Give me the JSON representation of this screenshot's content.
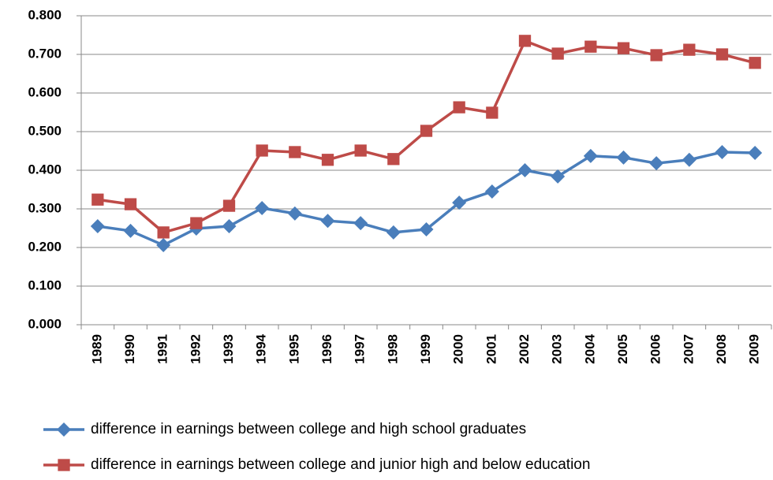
{
  "chart_data": {
    "type": "line",
    "categories": [
      "1989",
      "1990",
      "1991",
      "1992",
      "1993",
      "1994",
      "1995",
      "1996",
      "1997",
      "1998",
      "1999",
      "2000",
      "2001",
      "2002",
      "2003",
      "2004",
      "2005",
      "2006",
      "2007",
      "2008",
      "2009"
    ],
    "series": [
      {
        "name": "difference in earnings between college and high school graduates",
        "color": "#4a7ebb",
        "marker": "diamond",
        "values": [
          0.255,
          0.243,
          0.206,
          0.249,
          0.255,
          0.302,
          0.288,
          0.269,
          0.263,
          0.239,
          0.247,
          0.316,
          0.345,
          0.4,
          0.384,
          0.437,
          0.433,
          0.418,
          0.427,
          0.447,
          0.445
        ]
      },
      {
        "name": "difference in earnings between college and junior high and below education",
        "color": "#be4b48",
        "marker": "square",
        "values": [
          0.324,
          0.312,
          0.239,
          0.263,
          0.308,
          0.451,
          0.447,
          0.427,
          0.451,
          0.429,
          0.502,
          0.563,
          0.549,
          0.735,
          0.702,
          0.72,
          0.716,
          0.698,
          0.712,
          0.7,
          0.678
        ]
      }
    ],
    "ylim": [
      0,
      0.8
    ],
    "yticks": [
      {
        "value": 0,
        "label": "0.000"
      },
      {
        "value": 0.1,
        "label": "0.100"
      },
      {
        "value": 0.2,
        "label": "0.200"
      },
      {
        "value": 0.3,
        "label": "0.300"
      },
      {
        "value": 0.4,
        "label": "0.400"
      },
      {
        "value": 0.5,
        "label": "0.500"
      },
      {
        "value": 0.6,
        "label": "0.600"
      },
      {
        "value": 0.7,
        "label": "0.700"
      },
      {
        "value": 0.8,
        "label": "0.800"
      }
    ],
    "grid": true
  }
}
